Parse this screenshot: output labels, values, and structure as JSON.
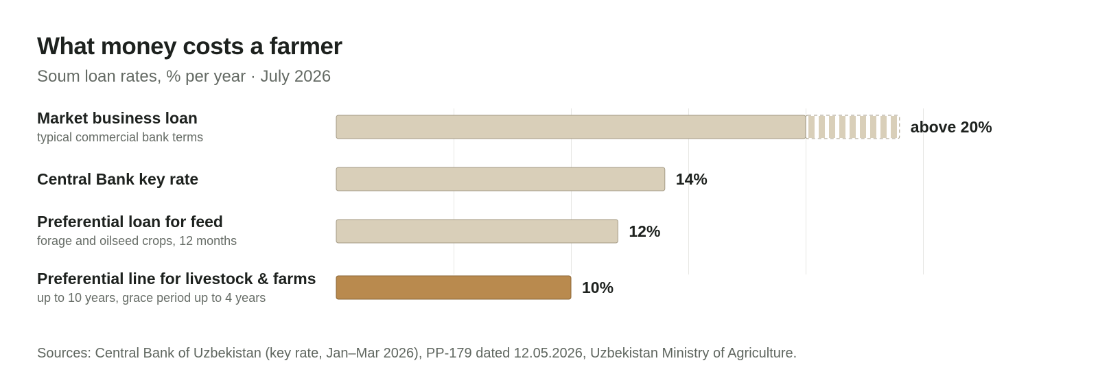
{
  "header": {
    "title": "What money costs a farmer",
    "subtitle": "Soum loan rates, % per year · July 2026"
  },
  "footer": {
    "source": "Sources: Central Bank of Uzbekistan (key rate, Jan–Mar 2026), PP-179 dated 12.05.2026, Uzbekistan Ministry of Agriculture."
  },
  "colors": {
    "neutral_bar": "#d9cfb9",
    "neutral_border": "#a39a84",
    "highlight_bar": "#b98a4e",
    "highlight_border": "#8a6535",
    "grid": "#e6e6e3"
  },
  "chart_data": {
    "type": "bar",
    "orientation": "horizontal",
    "title": "What money costs a farmer",
    "subtitle": "Soum loan rates, % per year · July 2026",
    "xlim": [
      0,
      25
    ],
    "grid": true,
    "bars": [
      {
        "label": "Market business loan",
        "note": "typical commercial bank terms",
        "value": 20,
        "open_ended_to": 24,
        "value_label": "above 20%",
        "highlight": false
      },
      {
        "label": "Central Bank key rate",
        "note": "",
        "value": 14,
        "value_label": "14%",
        "highlight": false
      },
      {
        "label": "Preferential loan for feed",
        "note": "forage and oilseed crops, 12 months",
        "value": 12,
        "value_label": "12%",
        "highlight": false
      },
      {
        "label": "Preferential line for livestock & farms",
        "note": "up to 10 years, grace period up to 4 years",
        "value": 10,
        "value_label": "10%",
        "highlight": true
      }
    ]
  }
}
